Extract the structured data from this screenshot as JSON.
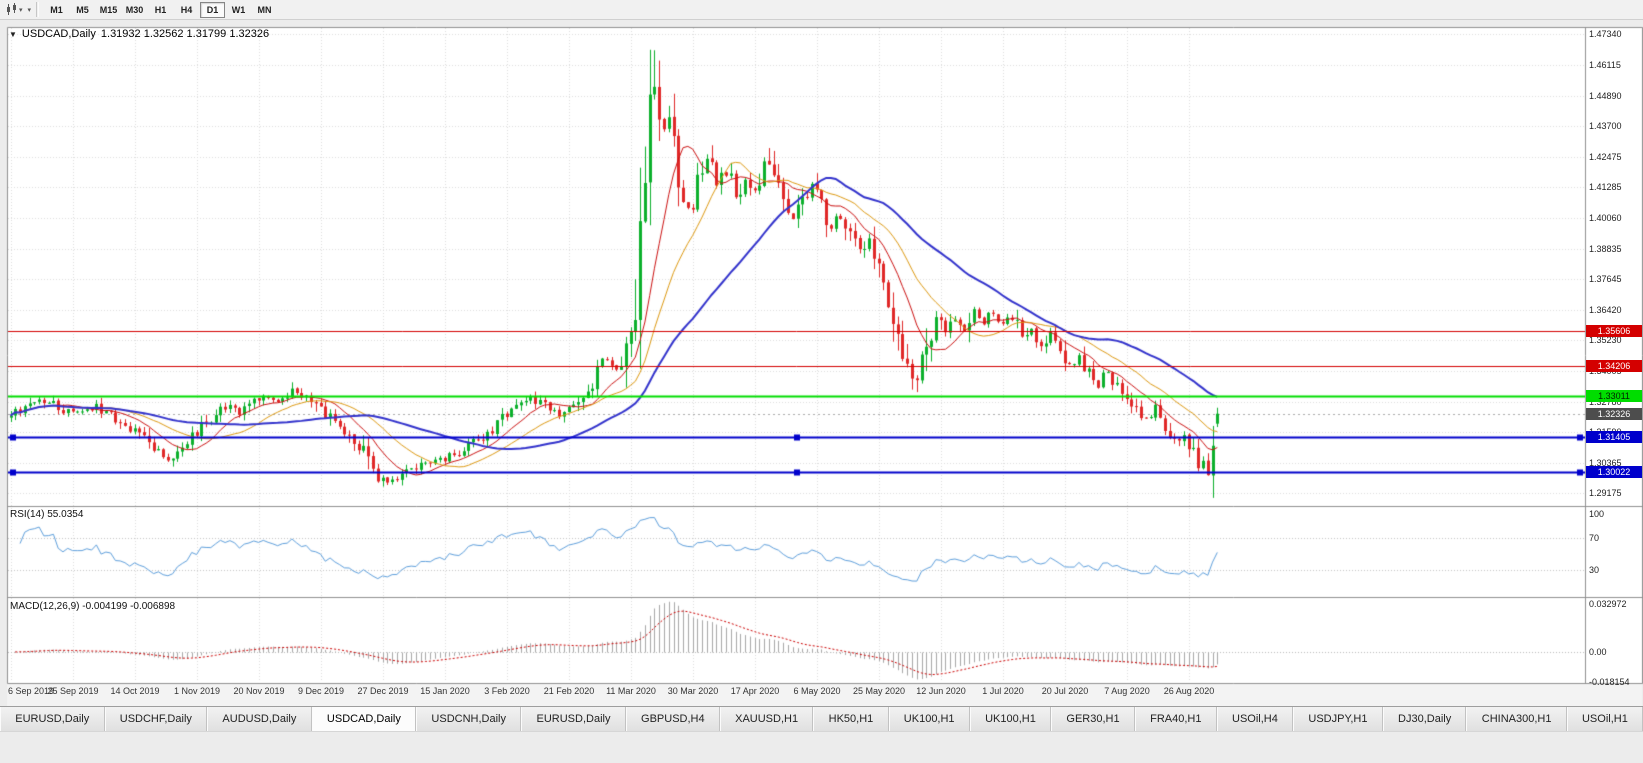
{
  "toolbar": {
    "timeframes": [
      {
        "label": "M1",
        "active": false
      },
      {
        "label": "M5",
        "active": false
      },
      {
        "label": "M15",
        "active": false
      },
      {
        "label": "M30",
        "active": false
      },
      {
        "label": "H1",
        "active": false
      },
      {
        "label": "H4",
        "active": false
      },
      {
        "label": "D1",
        "active": true
      },
      {
        "label": "W1",
        "active": false
      },
      {
        "label": "MN",
        "active": false
      }
    ]
  },
  "chart": {
    "title_symbol": "USDCAD,Daily",
    "ohlc_text": "1.31932 1.32562 1.31799 1.32326"
  },
  "indicators": {
    "rsi": {
      "label": "RSI(14) 55.0354",
      "levels": [
        100,
        70,
        30
      ],
      "level_labels": [
        "100",
        "70",
        "30"
      ]
    },
    "macd": {
      "label": "MACD(12,26,9) -0.004199 -0.006898",
      "axis": [
        {
          "value": 0.032972,
          "label": "0.032972"
        },
        {
          "value": 0,
          "label": "0.00"
        },
        {
          "value": -0.018154,
          "label": "-0.018154"
        }
      ]
    }
  },
  "chart_data": {
    "type": "candlestick",
    "symbol": "USDCAD",
    "period": "Daily",
    "bars": 254,
    "price_range": {
      "max": 1.4756,
      "min": 1.2872
    },
    "price_axis_ticks": [
      "1.47340",
      "1.46115",
      "1.44890",
      "1.43700",
      "1.42475",
      "1.41285",
      "1.40060",
      "1.38835",
      "1.37645",
      "1.36420",
      "1.35230",
      "1.34005",
      "1.32780",
      "1.31590",
      "1.30365",
      "1.29175"
    ],
    "current_price": 1.32326,
    "current_price_label": "1.32326",
    "last_candle": {
      "open": 1.31932,
      "high": 1.32562,
      "low": 1.31799,
      "close": 1.32326
    },
    "hlines": [
      {
        "price": 1.35606,
        "label": "1.35606",
        "color": "#d40000",
        "text_color": "#ffffff",
        "width": 1,
        "handles": false
      },
      {
        "price": 1.34206,
        "label": "1.34206",
        "color": "#d40000",
        "text_color": "#ffffff",
        "width": 1,
        "handles": false
      },
      {
        "price": 1.33011,
        "label": "1.33011",
        "color": "#00dd00",
        "text_color": "#002200",
        "width": 2,
        "handles": false
      },
      {
        "price": 1.31405,
        "label": "1.31405",
        "color": "#0000cc",
        "text_color": "#ffffff",
        "width": 2,
        "handles": true
      },
      {
        "price": 1.30022,
        "label": "1.30022",
        "color": "#0000cc",
        "text_color": "#ffffff",
        "width": 2,
        "handles": true
      }
    ],
    "date_labels": [
      {
        "index": 0,
        "label": "6 Sep 2019"
      },
      {
        "index": 13,
        "label": "25 Sep 2019"
      },
      {
        "index": 26,
        "label": "14 Oct 2019"
      },
      {
        "index": 39,
        "label": "1 Nov 2019"
      },
      {
        "index": 52,
        "label": "20 Nov 2019"
      },
      {
        "index": 65,
        "label": "9 Dec 2019"
      },
      {
        "index": 78,
        "label": "27 Dec 2019"
      },
      {
        "index": 91,
        "label": "15 Jan 2020"
      },
      {
        "index": 104,
        "label": "3 Feb 2020"
      },
      {
        "index": 117,
        "label": "21 Feb 2020"
      },
      {
        "index": 130,
        "label": "11 Mar 2020"
      },
      {
        "index": 143,
        "label": "30 Mar 2020"
      },
      {
        "index": 156,
        "label": "17 Apr 2020"
      },
      {
        "index": 169,
        "label": "6 May 2020"
      },
      {
        "index": 182,
        "label": "25 May 2020"
      },
      {
        "index": 195,
        "label": "12 Jun 2020"
      },
      {
        "index": 208,
        "label": "1 Jul 2020"
      },
      {
        "index": 221,
        "label": "20 Jul 2020"
      },
      {
        "index": 234,
        "label": "7 Aug 2020"
      },
      {
        "index": 247,
        "label": "26 Aug 2020"
      }
    ],
    "close_anchors": [
      [
        0,
        1.3225
      ],
      [
        3,
        1.3258
      ],
      [
        6,
        1.3292
      ],
      [
        9,
        1.3268
      ],
      [
        12,
        1.3238
      ],
      [
        15,
        1.3248
      ],
      [
        18,
        1.3262
      ],
      [
        21,
        1.3228
      ],
      [
        24,
        1.3195
      ],
      [
        27,
        1.3145
      ],
      [
        30,
        1.309
      ],
      [
        33,
        1.3058
      ],
      [
        36,
        1.3105
      ],
      [
        39,
        1.3168
      ],
      [
        42,
        1.3215
      ],
      [
        45,
        1.3258
      ],
      [
        48,
        1.3238
      ],
      [
        51,
        1.3278
      ],
      [
        54,
        1.3302
      ],
      [
        57,
        1.3288
      ],
      [
        60,
        1.3325
      ],
      [
        63,
        1.3295
      ],
      [
        65,
        1.3248
      ],
      [
        68,
        1.3192
      ],
      [
        71,
        1.3152
      ],
      [
        74,
        1.3072
      ],
      [
        76,
        1.2992
      ],
      [
        79,
        1.2965
      ],
      [
        82,
        1.2988
      ],
      [
        85,
        1.3022
      ],
      [
        88,
        1.3048
      ],
      [
        91,
        1.3052
      ],
      [
        94,
        1.3078
      ],
      [
        97,
        1.3122
      ],
      [
        100,
        1.3162
      ],
      [
        103,
        1.3208
      ],
      [
        106,
        1.3258
      ],
      [
        109,
        1.3298
      ],
      [
        112,
        1.3262
      ],
      [
        115,
        1.3232
      ],
      [
        118,
        1.3268
      ],
      [
        121,
        1.3325
      ],
      [
        123,
        1.3395
      ],
      [
        125,
        1.3448
      ],
      [
        127,
        1.3408
      ],
      [
        129,
        1.3488
      ],
      [
        130,
        1.3598
      ],
      [
        131,
        1.3725
      ],
      [
        132,
        1.3915
      ],
      [
        133,
        1.4125
      ],
      [
        134,
        1.4385
      ],
      [
        135,
        1.4562
      ],
      [
        136,
        1.4455
      ],
      [
        137,
        1.4335
      ],
      [
        138,
        1.4425
      ],
      [
        139,
        1.4265
      ],
      [
        140,
        1.4145
      ],
      [
        142,
        1.4035
      ],
      [
        144,
        1.4145
      ],
      [
        146,
        1.4235
      ],
      [
        148,
        1.4115
      ],
      [
        150,
        1.4185
      ],
      [
        152,
        1.4095
      ],
      [
        154,
        1.4165
      ],
      [
        156,
        1.4125
      ],
      [
        158,
        1.4235
      ],
      [
        160,
        1.4155
      ],
      [
        162,
        1.4065
      ],
      [
        164,
        1.3995
      ],
      [
        166,
        1.4085
      ],
      [
        168,
        1.4125
      ],
      [
        170,
        1.4055
      ],
      [
        172,
        1.3975
      ],
      [
        174,
        1.4015
      ],
      [
        176,
        1.3935
      ],
      [
        178,
        1.3875
      ],
      [
        180,
        1.3915
      ],
      [
        182,
        1.3795
      ],
      [
        184,
        1.3695
      ],
      [
        186,
        1.3565
      ],
      [
        188,
        1.3445
      ],
      [
        190,
        1.3375
      ],
      [
        192,
        1.3485
      ],
      [
        194,
        1.3625
      ],
      [
        196,
        1.3555
      ],
      [
        198,
        1.3605
      ],
      [
        200,
        1.3565
      ],
      [
        202,
        1.3635
      ],
      [
        204,
        1.3585
      ],
      [
        206,
        1.3625
      ],
      [
        208,
        1.3578
      ],
      [
        210,
        1.3612
      ],
      [
        212,
        1.3548
      ],
      [
        214,
        1.3582
      ],
      [
        216,
        1.3512
      ],
      [
        218,
        1.3552
      ],
      [
        220,
        1.3482
      ],
      [
        222,
        1.3425
      ],
      [
        224,
        1.3445
      ],
      [
        226,
        1.3385
      ],
      [
        228,
        1.3345
      ],
      [
        230,
        1.3392
      ],
      [
        232,
        1.3348
      ],
      [
        234,
        1.3302
      ],
      [
        236,
        1.3255
      ],
      [
        238,
        1.3215
      ],
      [
        240,
        1.3258
      ],
      [
        242,
        1.3185
      ],
      [
        244,
        1.3125
      ],
      [
        246,
        1.3155
      ],
      [
        248,
        1.3085
      ],
      [
        250,
        1.3022
      ],
      [
        251,
        1.3002
      ],
      [
        252,
        1.3132
      ],
      [
        253,
        1.32326
      ]
    ],
    "forced_extremes": [
      {
        "index": 33,
        "low": 1.3042
      },
      {
        "index": 79,
        "low": 1.2951
      },
      {
        "index": 134,
        "high": 1.467
      },
      {
        "index": 135,
        "high": 1.4668
      },
      {
        "index": 190,
        "low": 1.3318
      },
      {
        "index": 251,
        "low": 1.2988
      }
    ],
    "moving_averages": [
      {
        "name": "SMA10",
        "period": 10,
        "color": "#cc1111",
        "width": 1
      },
      {
        "name": "SMA20",
        "period": 20,
        "color": "#dd9911",
        "width": 1
      },
      {
        "name": "SMA40",
        "period": 40,
        "color": "#3333cc",
        "width": 2
      }
    ],
    "rsi": {
      "period": 14,
      "color": "#5e9fdc",
      "current": 55.0354
    },
    "macd": {
      "fast": 12,
      "slow": 26,
      "signal": 9,
      "current": -0.004199,
      "signal_current": -0.006898,
      "hist_color": "#a8a8a8",
      "signal_color": "#cc0000"
    },
    "colors": {
      "up": "#0cb02c",
      "down": "#e02828",
      "grid": "#dcdcdc",
      "frame": "#909090"
    }
  },
  "tabs": {
    "active_index": 3,
    "items": [
      {
        "label": "EURUSD,Daily"
      },
      {
        "label": "USDCHF,Daily"
      },
      {
        "label": "AUDUSD,Daily"
      },
      {
        "label": "USDCAD,Daily"
      },
      {
        "label": "USDCNH,Daily"
      },
      {
        "label": "EURUSD,Daily"
      },
      {
        "label": "GBPUSD,H4"
      },
      {
        "label": "XAUUSD,H1"
      },
      {
        "label": "HK50,H1"
      },
      {
        "label": "UK100,H1"
      },
      {
        "label": "UK100,H1"
      },
      {
        "label": "GER30,H1"
      },
      {
        "label": "FRA40,H1"
      },
      {
        "label": "USOil,H4"
      },
      {
        "label": "USDJPY,H1"
      },
      {
        "label": "DJ30,Daily"
      },
      {
        "label": "CHINA300,H1"
      },
      {
        "label": "USOil,H1"
      }
    ]
  }
}
